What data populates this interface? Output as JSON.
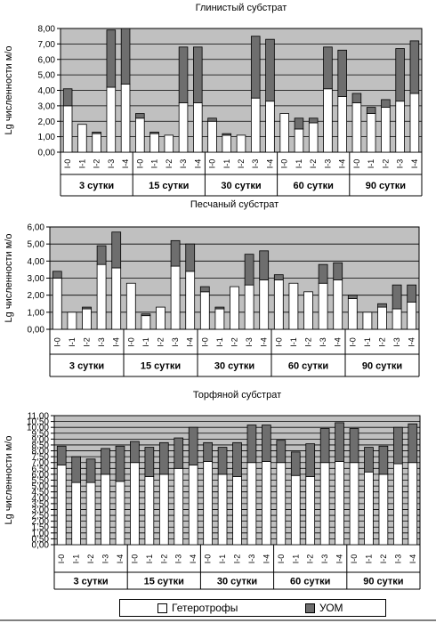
{
  "legend": {
    "heterotrophs": "Гетеротрофы",
    "uom": "УОМ",
    "heterotrophs_color": "#ffffff",
    "uom_color": "#6e6e6e"
  },
  "colors": {
    "plot_background": "#c0c0c0",
    "frame": "#000000",
    "grid": "#000000"
  },
  "chart_data": [
    {
      "type": "bar",
      "stacked": true,
      "title": "Глинистый субстрат",
      "ylabel": "Lg численности м/о",
      "ylim": [
        0,
        8
      ],
      "yticks": [
        "0,00",
        "1,00",
        "2,00",
        "3,00",
        "4,00",
        "5,00",
        "6,00",
        "7,00",
        "8,00"
      ],
      "grid": true,
      "groups": [
        "3 сутки",
        "15 сутки",
        "30 сутки",
        "60 сутки",
        "90 сутки"
      ],
      "categories": [
        "I-0",
        "I-1",
        "I-2",
        "I-3",
        "I-4"
      ],
      "series": [
        {
          "name": "Гетеротрофы",
          "values": [
            [
              3.0,
              1.8,
              1.2,
              4.2,
              4.4
            ],
            [
              2.2,
              1.2,
              1.1,
              3.2,
              3.2
            ],
            [
              2.0,
              1.1,
              1.1,
              3.5,
              3.3
            ],
            [
              2.5,
              1.5,
              1.9,
              4.1,
              3.6
            ],
            [
              3.2,
              2.5,
              2.9,
              3.3,
              3.8
            ]
          ]
        },
        {
          "name": "УОМ",
          "values": [
            [
              1.1,
              0.0,
              0.1,
              3.7,
              3.6
            ],
            [
              0.3,
              0.1,
              0.0,
              3.6,
              3.6
            ],
            [
              0.2,
              0.1,
              0.0,
              4.0,
              4.0
            ],
            [
              0.0,
              0.7,
              0.3,
              2.7,
              3.0
            ],
            [
              0.6,
              0.4,
              0.5,
              3.4,
              3.4
            ]
          ]
        }
      ]
    },
    {
      "type": "bar",
      "stacked": true,
      "title": "Песчаный субстрат",
      "ylabel": "Lg численности м/о",
      "ylim": [
        0,
        6
      ],
      "yticks": [
        "0,00",
        "1,00",
        "2,00",
        "3,00",
        "4,00",
        "5,00",
        "6,00"
      ],
      "grid": true,
      "groups": [
        "3 сутки",
        "15 сутки",
        "30 сутки",
        "60 сутки",
        "90 сутки"
      ],
      "categories": [
        "I-0",
        "I-1",
        "I-2",
        "I-3",
        "I-4"
      ],
      "series": [
        {
          "name": "Гетеротрофы",
          "values": [
            [
              3.0,
              1.0,
              1.2,
              3.8,
              3.6
            ],
            [
              2.7,
              0.8,
              1.3,
              3.7,
              3.4
            ],
            [
              2.2,
              1.2,
              2.5,
              2.6,
              2.9
            ],
            [
              2.9,
              2.7,
              2.2,
              2.7,
              2.9
            ],
            [
              1.8,
              1.0,
              1.3,
              1.2,
              1.6
            ]
          ]
        },
        {
          "name": "УОМ",
          "values": [
            [
              0.4,
              0.0,
              0.1,
              1.1,
              2.1
            ],
            [
              0.0,
              0.1,
              0.0,
              1.5,
              1.6
            ],
            [
              0.3,
              0.1,
              0.0,
              1.8,
              1.7
            ],
            [
              0.3,
              0.0,
              0.0,
              1.1,
              1.0
            ],
            [
              0.2,
              0.0,
              0.2,
              1.4,
              1.0
            ]
          ]
        }
      ]
    },
    {
      "type": "bar",
      "stacked": true,
      "title": "Торфяной субстрат",
      "ylabel": "Lg численности м/о",
      "ylim": [
        0,
        11
      ],
      "yticks": [
        "0,00",
        "0,50",
        "1,00",
        "1,50",
        "2,00",
        "2,50",
        "3,00",
        "3,50",
        "4,00",
        "4,50",
        "5,00",
        "5,50",
        "6,00",
        "6,50",
        "7,00",
        "7,50",
        "8,00",
        "8,50",
        "9,00",
        "9,50",
        "10,00",
        "10,50",
        "11,00"
      ],
      "grid": true,
      "groups": [
        "3 сутки",
        "15 сутки",
        "30 сутки",
        "60 сутки",
        "90 сутки"
      ],
      "categories": [
        "I-0",
        "I-1",
        "I-2",
        "I-3",
        "I-4"
      ],
      "series": [
        {
          "name": "Гетеротрофы",
          "values": [
            [
              6.8,
              5.3,
              5.3,
              6.0,
              5.4
            ],
            [
              7.0,
              5.8,
              6.0,
              6.5,
              6.8
            ],
            [
              7.1,
              6.0,
              5.8,
              7.0,
              7.1
            ],
            [
              7.0,
              5.9,
              5.8,
              7.0,
              7.1
            ],
            [
              7.0,
              6.2,
              6.0,
              6.9,
              7.0
            ]
          ]
        },
        {
          "name": "УОМ",
          "values": [
            [
              1.6,
              2.2,
              2.0,
              2.2,
              3.0
            ],
            [
              1.8,
              2.5,
              2.7,
              2.6,
              3.2
            ],
            [
              1.6,
              2.3,
              2.9,
              3.2,
              3.1
            ],
            [
              1.9,
              2.0,
              2.8,
              2.9,
              3.3
            ],
            [
              2.9,
              2.1,
              2.4,
              3.1,
              3.3
            ]
          ]
        }
      ]
    }
  ]
}
